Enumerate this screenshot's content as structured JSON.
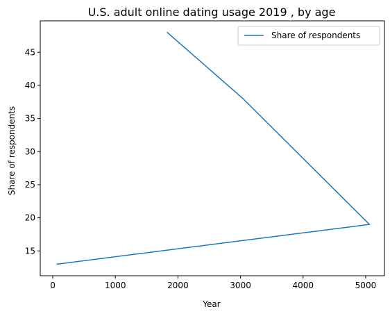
{
  "chart_data": {
    "type": "line",
    "title": "U.S. adult online dating usage 2019 , by age",
    "xlabel": "Year",
    "ylabel": "Share of respondents",
    "xlim": [
      -200,
      5300
    ],
    "ylim": [
      11.25,
      49.75
    ],
    "xticks": [
      0,
      1000,
      2000,
      3000,
      4000,
      5000
    ],
    "yticks": [
      15,
      20,
      25,
      30,
      35,
      40,
      45
    ],
    "grid": false,
    "legend_position": "top-right",
    "series": [
      {
        "name": "Share of respondents",
        "color": "#1f77b4",
        "points": [
          {
            "x": 1830,
            "y": 48
          },
          {
            "x": 3040,
            "y": 38
          },
          {
            "x": 5060,
            "y": 19
          },
          {
            "x": 70,
            "y": 13
          }
        ]
      }
    ]
  }
}
